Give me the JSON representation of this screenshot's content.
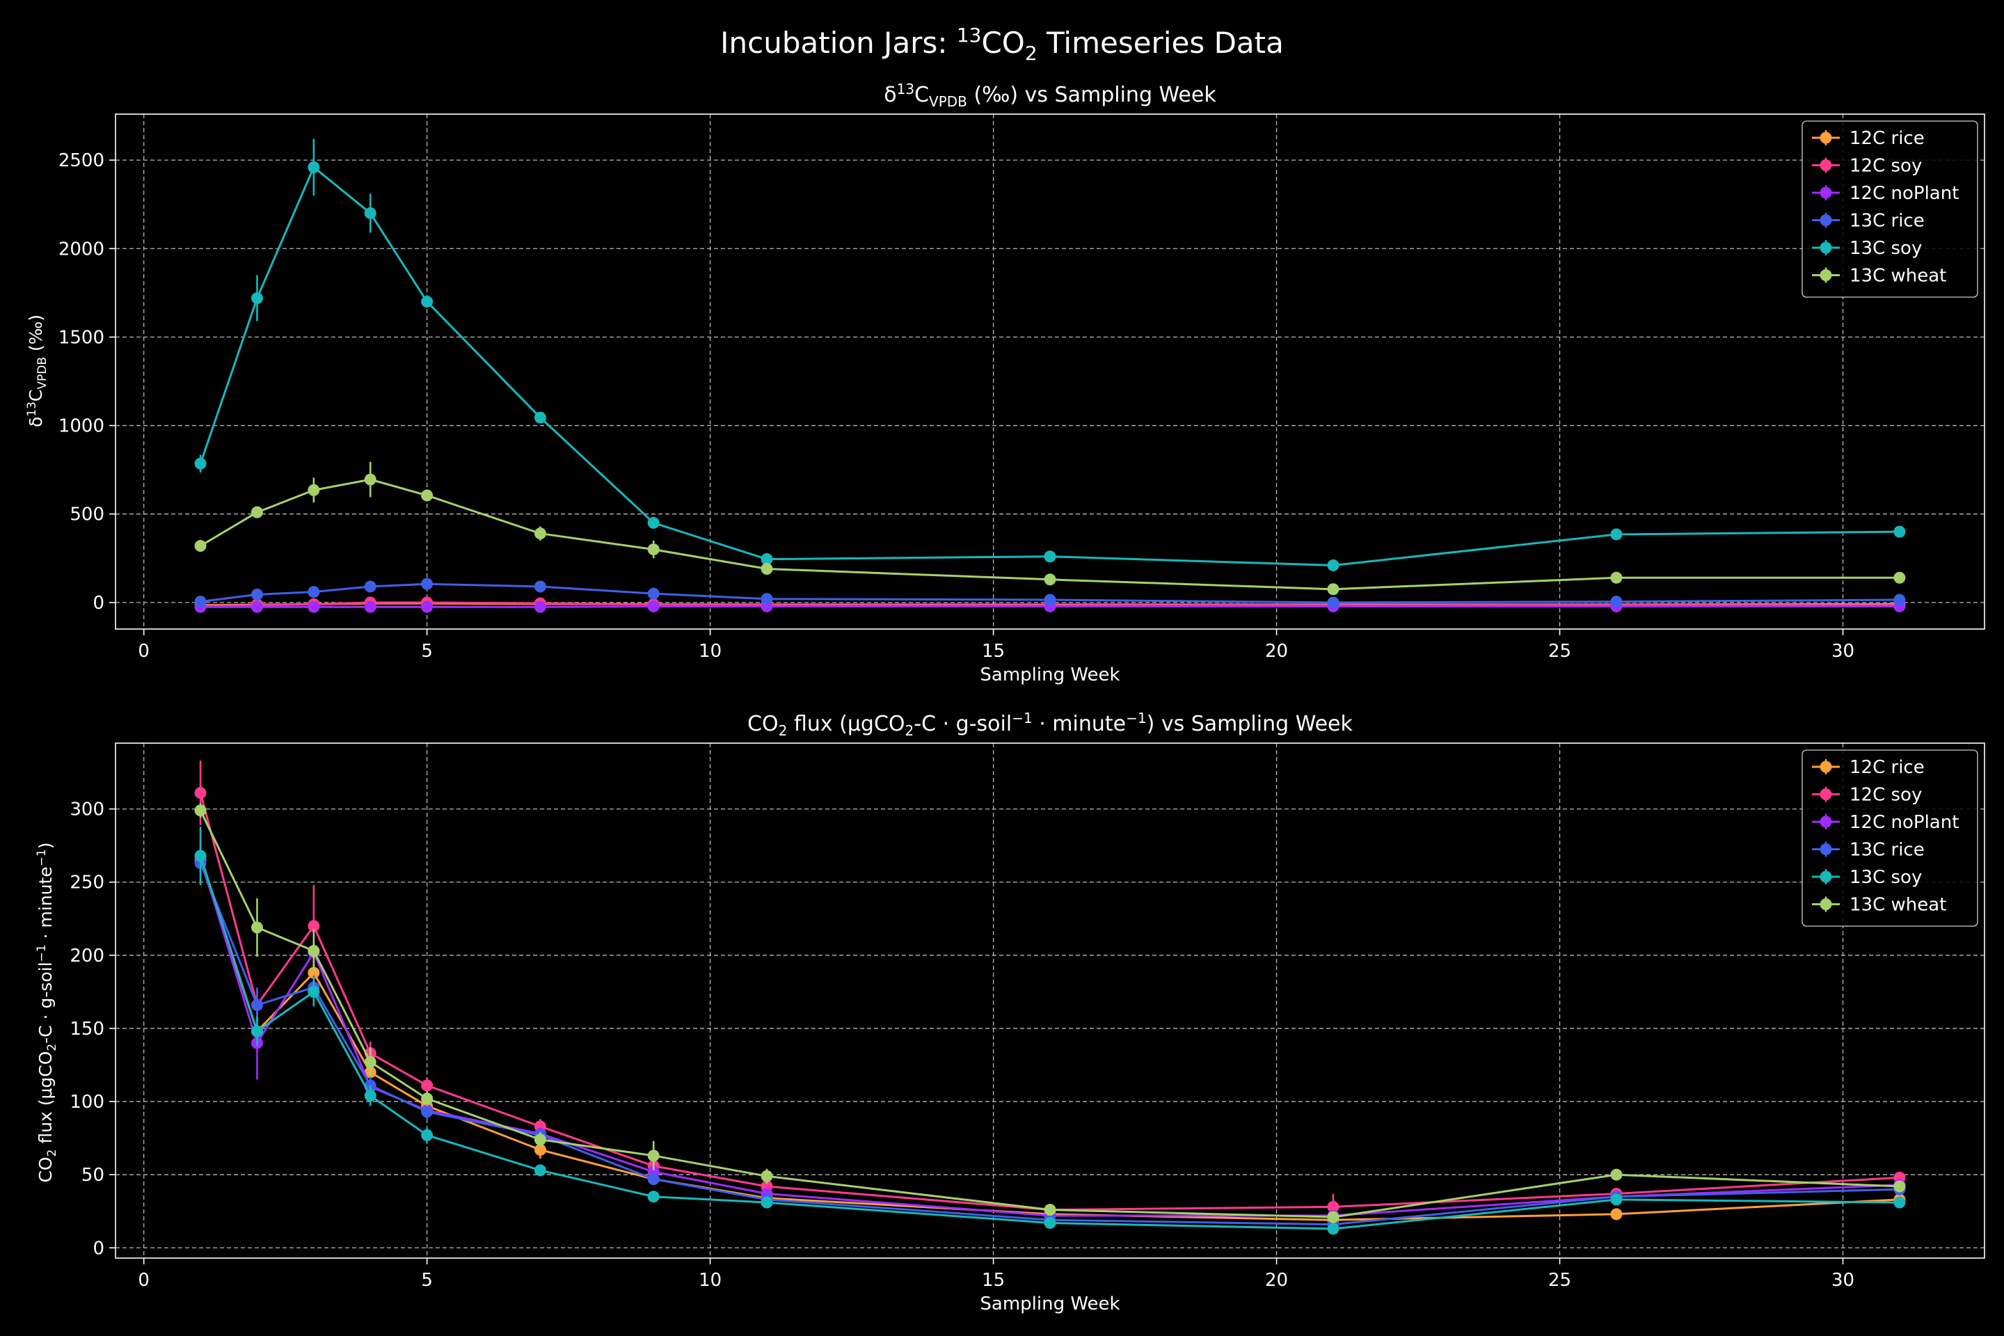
{
  "figure": {
    "title_main": "Incubation Jars: ",
    "title_sup": "13",
    "title_rest": "CO",
    "title_sub": "2",
    "title_end": " Timeseries Data"
  },
  "chart_data": [
    {
      "type": "line",
      "title_parts": [
        "δ",
        "13",
        "C",
        "VPDB",
        " (‰) vs Sampling Week"
      ],
      "xlabel": "Sampling Week",
      "ylabel_parts": [
        "δ",
        "13",
        "C",
        "VPDB",
        " (‰)"
      ],
      "xlim": [
        -0.5,
        32.5
      ],
      "ylim": [
        -150,
        2760
      ],
      "xticks": [
        0,
        5,
        10,
        15,
        20,
        25,
        30
      ],
      "yticks": [
        0,
        500,
        1000,
        1500,
        2000,
        2500
      ],
      "grid": true,
      "error_bars": true,
      "legend_position": "top-right",
      "series": [
        {
          "name": "12C rice",
          "color": "#ff9f3a",
          "x": [
            1,
            2,
            3,
            4,
            5,
            7,
            9,
            11,
            16,
            21,
            26,
            31
          ],
          "y": [
            -15,
            -12,
            -10,
            -5,
            -5,
            -8,
            -10,
            -12,
            -12,
            -12,
            -12,
            -10
          ],
          "err": [
            5,
            5,
            5,
            5,
            5,
            5,
            5,
            5,
            5,
            5,
            5,
            5
          ]
        },
        {
          "name": "12C soy",
          "color": "#ff3a8c",
          "x": [
            1,
            2,
            3,
            4,
            5,
            7,
            9,
            11,
            16,
            21,
            26,
            31
          ],
          "y": [
            -20,
            -15,
            -10,
            0,
            0,
            -5,
            -10,
            -15,
            -15,
            -15,
            -15,
            -15
          ],
          "err": [
            5,
            5,
            5,
            5,
            5,
            5,
            5,
            5,
            5,
            5,
            5,
            5
          ]
        },
        {
          "name": "12C noPlant",
          "color": "#a02cff",
          "x": [
            1,
            2,
            3,
            4,
            5,
            7,
            9,
            11,
            16,
            21,
            26,
            31
          ],
          "y": [
            -25,
            -25,
            -25,
            -25,
            -25,
            -25,
            -22,
            -22,
            -22,
            -22,
            -22,
            -22
          ],
          "err": [
            5,
            5,
            5,
            5,
            5,
            5,
            5,
            5,
            5,
            5,
            5,
            5
          ]
        },
        {
          "name": "13C rice",
          "color": "#3f5fe8",
          "x": [
            1,
            2,
            3,
            4,
            5,
            7,
            9,
            11,
            16,
            21,
            26,
            31
          ],
          "y": [
            5,
            45,
            60,
            90,
            105,
            90,
            50,
            20,
            15,
            0,
            5,
            15
          ],
          "err": [
            10,
            15,
            15,
            20,
            20,
            15,
            15,
            10,
            10,
            10,
            10,
            10
          ]
        },
        {
          "name": "13C soy",
          "color": "#17b8bc",
          "x": [
            1,
            2,
            3,
            4,
            5,
            7,
            9,
            11,
            16,
            21,
            26,
            31
          ],
          "y": [
            785,
            1720,
            2460,
            2200,
            1700,
            1045,
            450,
            245,
            260,
            210,
            385,
            400
          ],
          "err": [
            50,
            130,
            160,
            110,
            30,
            30,
            20,
            15,
            15,
            15,
            15,
            15
          ]
        },
        {
          "name": "13C wheat",
          "color": "#a6d16a",
          "x": [
            1,
            2,
            3,
            4,
            5,
            7,
            9,
            11,
            16,
            21,
            26,
            31
          ],
          "y": [
            320,
            510,
            635,
            695,
            605,
            390,
            300,
            190,
            130,
            75,
            140,
            140
          ],
          "err": [
            20,
            25,
            70,
            100,
            30,
            40,
            50,
            20,
            10,
            10,
            10,
            10
          ]
        }
      ]
    },
    {
      "type": "line",
      "title_parts": [
        "CO",
        "2",
        " flux (μgCO",
        "2",
        "-C · g-soil",
        "−1",
        " · minute",
        "−1",
        ") vs Sampling Week"
      ],
      "xlabel": "Sampling Week",
      "ylabel_parts": [
        "CO",
        "2",
        " flux (μgCO",
        "2",
        "-C · g-soil",
        "−1",
        " · minute",
        "−1",
        ")"
      ],
      "xlim": [
        -0.5,
        32.5
      ],
      "ylim": [
        -7,
        345
      ],
      "xticks": [
        0,
        5,
        10,
        15,
        20,
        25,
        30
      ],
      "yticks": [
        0,
        50,
        100,
        150,
        200,
        250,
        300
      ],
      "grid": true,
      "error_bars": true,
      "legend_position": "top-right",
      "series": [
        {
          "name": "12C rice",
          "color": "#ff9f3a",
          "x": [
            1,
            2,
            3,
            4,
            5,
            7,
            9,
            11,
            16,
            21,
            26,
            31
          ],
          "y": [
            265,
            148,
            188,
            120,
            97,
            67,
            47,
            34,
            23,
            19,
            23,
            33
          ],
          "err": [
            8,
            8,
            6,
            8,
            5,
            6,
            4,
            3,
            2,
            2,
            2,
            2
          ]
        },
        {
          "name": "12C soy",
          "color": "#ff3a8c",
          "x": [
            1,
            2,
            3,
            4,
            5,
            7,
            9,
            11,
            16,
            21,
            26,
            31
          ],
          "y": [
            311,
            166,
            220,
            133,
            111,
            83,
            56,
            42,
            26,
            28,
            37,
            48
          ],
          "err": [
            22,
            10,
            28,
            8,
            5,
            5,
            5,
            4,
            3,
            9,
            4,
            4
          ]
        },
        {
          "name": "12C noPlant",
          "color": "#a02cff",
          "x": [
            1,
            2,
            3,
            4,
            5,
            7,
            9,
            11,
            16,
            21,
            26,
            31
          ],
          "y": [
            267,
            140,
            202,
            110,
            94,
            78,
            52,
            37,
            22,
            22,
            35,
            43
          ],
          "err": [
            10,
            25,
            8,
            6,
            5,
            4,
            3,
            3,
            2,
            2,
            2,
            2
          ]
        },
        {
          "name": "13C rice",
          "color": "#3f5fe8",
          "x": [
            1,
            2,
            3,
            4,
            5,
            7,
            9,
            11,
            16,
            21,
            26,
            31
          ],
          "y": [
            263,
            166,
            178,
            111,
            93,
            77,
            47,
            33,
            19,
            16,
            35,
            40
          ],
          "err": [
            8,
            12,
            8,
            6,
            5,
            4,
            3,
            3,
            2,
            2,
            2,
            2
          ]
        },
        {
          "name": "13C soy",
          "color": "#17b8bc",
          "x": [
            1,
            2,
            3,
            4,
            5,
            7,
            9,
            11,
            16,
            21,
            26,
            31
          ],
          "y": [
            268,
            148,
            175,
            104,
            77,
            53,
            35,
            31,
            17,
            13,
            33,
            31
          ],
          "err": [
            20,
            10,
            10,
            7,
            5,
            4,
            3,
            3,
            2,
            2,
            3,
            2
          ]
        },
        {
          "name": "13C wheat",
          "color": "#a6d16a",
          "x": [
            1,
            2,
            3,
            4,
            5,
            7,
            9,
            11,
            16,
            21,
            26,
            31
          ],
          "y": [
            299,
            219,
            203,
            127,
            102,
            74,
            63,
            49,
            26,
            21,
            50,
            42
          ],
          "err": [
            5,
            20,
            15,
            10,
            5,
            5,
            10,
            5,
            2,
            3,
            3,
            3
          ]
        }
      ]
    }
  ]
}
